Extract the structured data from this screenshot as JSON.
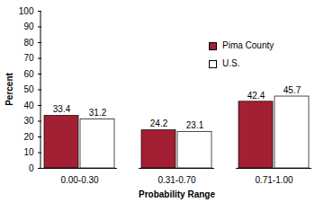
{
  "chart_data": {
    "type": "bar",
    "x_label": "Probability Range",
    "y_label": "Percent",
    "categories": [
      "0.00-0.30",
      "0.31-0.70",
      "0.71-1.00"
    ],
    "series": [
      {
        "name": "Pima County",
        "color": "#a31f34",
        "values": [
          33.4,
          24.2,
          42.4
        ]
      },
      {
        "name": "U.S.",
        "color": "#ffffff",
        "values": [
          31.2,
          23.1,
          45.7
        ]
      }
    ],
    "ylim": [
      0,
      100
    ],
    "yticks": [
      0,
      10,
      20,
      30,
      40,
      50,
      60,
      70,
      80,
      90,
      100
    ],
    "data_labels": true,
    "legend": "upper right",
    "grid": false
  }
}
